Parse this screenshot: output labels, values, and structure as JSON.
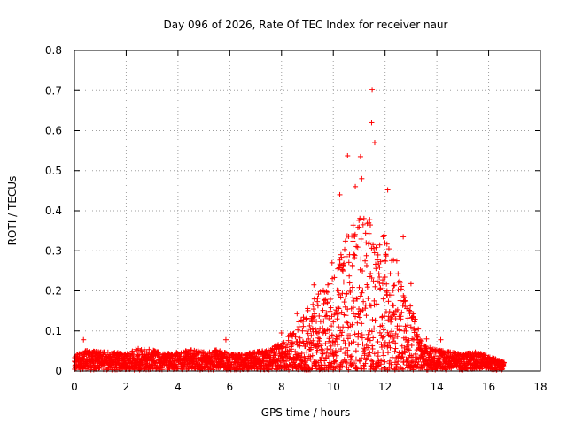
{
  "chart_data": {
    "type": "scatter",
    "title": "Day 096 of 2026, Rate Of TEC Index for receiver naur",
    "xlabel": "GPS time / hours",
    "ylabel": "ROTI / TECUs",
    "xlim": [
      0,
      18
    ],
    "ylim": [
      0,
      0.8
    ],
    "grid": true,
    "marker": "+",
    "color": "#ff0000",
    "x_ticks": [
      "0",
      "2",
      "4",
      "6",
      "8",
      "10",
      "12",
      "14",
      "16",
      "18"
    ],
    "y_ticks": [
      "0",
      "0.1",
      "0.2",
      "0.3",
      "0.4",
      "0.5",
      "0.6",
      "0.7",
      "0.8"
    ],
    "data_span_hours": [
      0,
      16.6
    ],
    "background_level_tecus": 0.02,
    "notable_points": [
      {
        "x": 0.35,
        "y": 0.078
      },
      {
        "x": 5.85,
        "y": 0.078
      },
      {
        "x": 8.0,
        "y": 0.095
      },
      {
        "x": 8.6,
        "y": 0.143
      },
      {
        "x": 9.25,
        "y": 0.215
      },
      {
        "x": 9.95,
        "y": 0.27
      },
      {
        "x": 10.25,
        "y": 0.44
      },
      {
        "x": 10.55,
        "y": 0.537
      },
      {
        "x": 10.85,
        "y": 0.46
      },
      {
        "x": 11.05,
        "y": 0.535
      },
      {
        "x": 11.1,
        "y": 0.48
      },
      {
        "x": 11.5,
        "y": 0.702
      },
      {
        "x": 11.48,
        "y": 0.62
      },
      {
        "x": 11.6,
        "y": 0.57
      },
      {
        "x": 12.1,
        "y": 0.452
      },
      {
        "x": 12.7,
        "y": 0.335
      },
      {
        "x": 13.0,
        "y": 0.218
      },
      {
        "x": 13.6,
        "y": 0.08
      },
      {
        "x": 14.15,
        "y": 0.078
      }
    ],
    "envelope": [
      {
        "x": 0.0,
        "y": 0.035
      },
      {
        "x": 0.5,
        "y": 0.05
      },
      {
        "x": 1.0,
        "y": 0.045
      },
      {
        "x": 1.5,
        "y": 0.045
      },
      {
        "x": 2.0,
        "y": 0.04
      },
      {
        "x": 2.5,
        "y": 0.055
      },
      {
        "x": 3.0,
        "y": 0.05
      },
      {
        "x": 3.5,
        "y": 0.04
      },
      {
        "x": 4.0,
        "y": 0.045
      },
      {
        "x": 4.5,
        "y": 0.05
      },
      {
        "x": 5.0,
        "y": 0.045
      },
      {
        "x": 5.5,
        "y": 0.05
      },
      {
        "x": 6.0,
        "y": 0.04
      },
      {
        "x": 6.5,
        "y": 0.04
      },
      {
        "x": 7.0,
        "y": 0.045
      },
      {
        "x": 7.5,
        "y": 0.05
      },
      {
        "x": 8.0,
        "y": 0.07
      },
      {
        "x": 8.5,
        "y": 0.1
      },
      {
        "x": 9.0,
        "y": 0.17
      },
      {
        "x": 9.5,
        "y": 0.2
      },
      {
        "x": 10.0,
        "y": 0.24
      },
      {
        "x": 10.5,
        "y": 0.33
      },
      {
        "x": 11.0,
        "y": 0.4
      },
      {
        "x": 11.5,
        "y": 0.38
      },
      {
        "x": 12.0,
        "y": 0.33
      },
      {
        "x": 12.5,
        "y": 0.27
      },
      {
        "x": 13.0,
        "y": 0.16
      },
      {
        "x": 13.5,
        "y": 0.06
      },
      {
        "x": 14.0,
        "y": 0.05
      },
      {
        "x": 14.5,
        "y": 0.045
      },
      {
        "x": 15.0,
        "y": 0.04
      },
      {
        "x": 15.5,
        "y": 0.045
      },
      {
        "x": 16.0,
        "y": 0.035
      },
      {
        "x": 16.6,
        "y": 0.02
      }
    ]
  }
}
